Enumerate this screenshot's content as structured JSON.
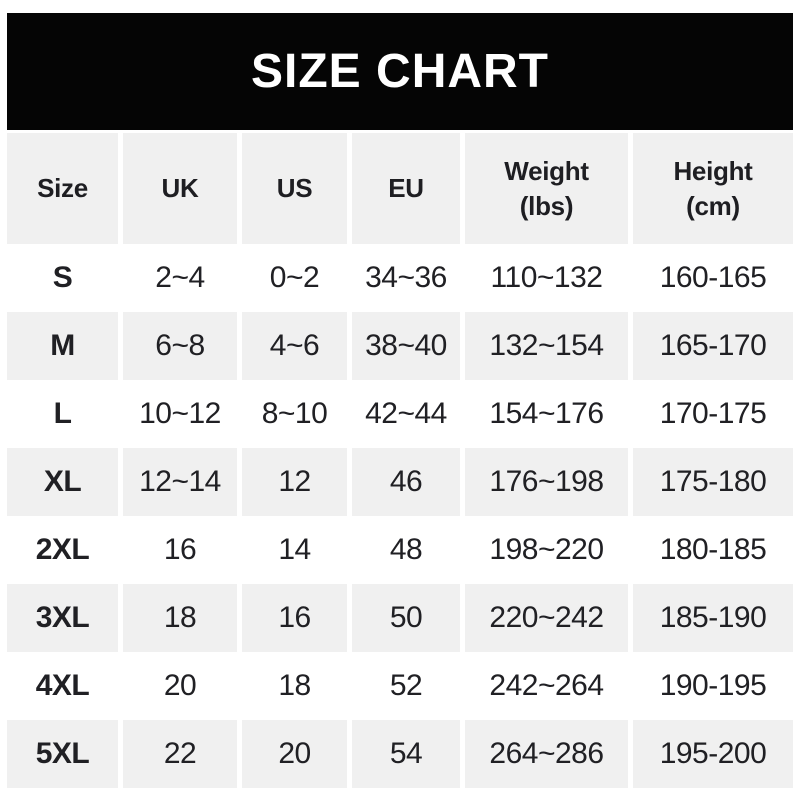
{
  "banner": {
    "title": "SIZE CHART"
  },
  "colors": {
    "banner_bg": "#050505",
    "banner_text": "#ffffff",
    "row_shade": "#f0f0f0",
    "text": "#202024"
  },
  "table": {
    "columns": [
      {
        "label": "Size"
      },
      {
        "label": "UK"
      },
      {
        "label": "US"
      },
      {
        "label": "EU"
      },
      {
        "label": "Weight",
        "unit": "(lbs)"
      },
      {
        "label": "Height",
        "unit": "(cm)"
      }
    ]
  },
  "chart_data": {
    "type": "table",
    "title": "SIZE CHART",
    "columns": [
      "Size",
      "UK",
      "US",
      "EU",
      "Weight (lbs)",
      "Height (cm)"
    ],
    "rows": [
      [
        "S",
        "2~4",
        "0~2",
        "34~36",
        "110~132",
        "160-165"
      ],
      [
        "M",
        "6~8",
        "4~6",
        "38~40",
        "132~154",
        "165-170"
      ],
      [
        "L",
        "10~12",
        "8~10",
        "42~44",
        "154~176",
        "170-175"
      ],
      [
        "XL",
        "12~14",
        "12",
        "46",
        "176~198",
        "175-180"
      ],
      [
        "2XL",
        "16",
        "14",
        "48",
        "198~220",
        "180-185"
      ],
      [
        "3XL",
        "18",
        "16",
        "50",
        "220~242",
        "185-190"
      ],
      [
        "4XL",
        "20",
        "18",
        "52",
        "242~264",
        "190-195"
      ],
      [
        "5XL",
        "22",
        "20",
        "54",
        "264~286",
        "195-200"
      ]
    ],
    "layout": {
      "shaded_rows": [
        "header",
        "M",
        "XL",
        "3XL",
        "5XL"
      ],
      "grid": "off"
    }
  }
}
